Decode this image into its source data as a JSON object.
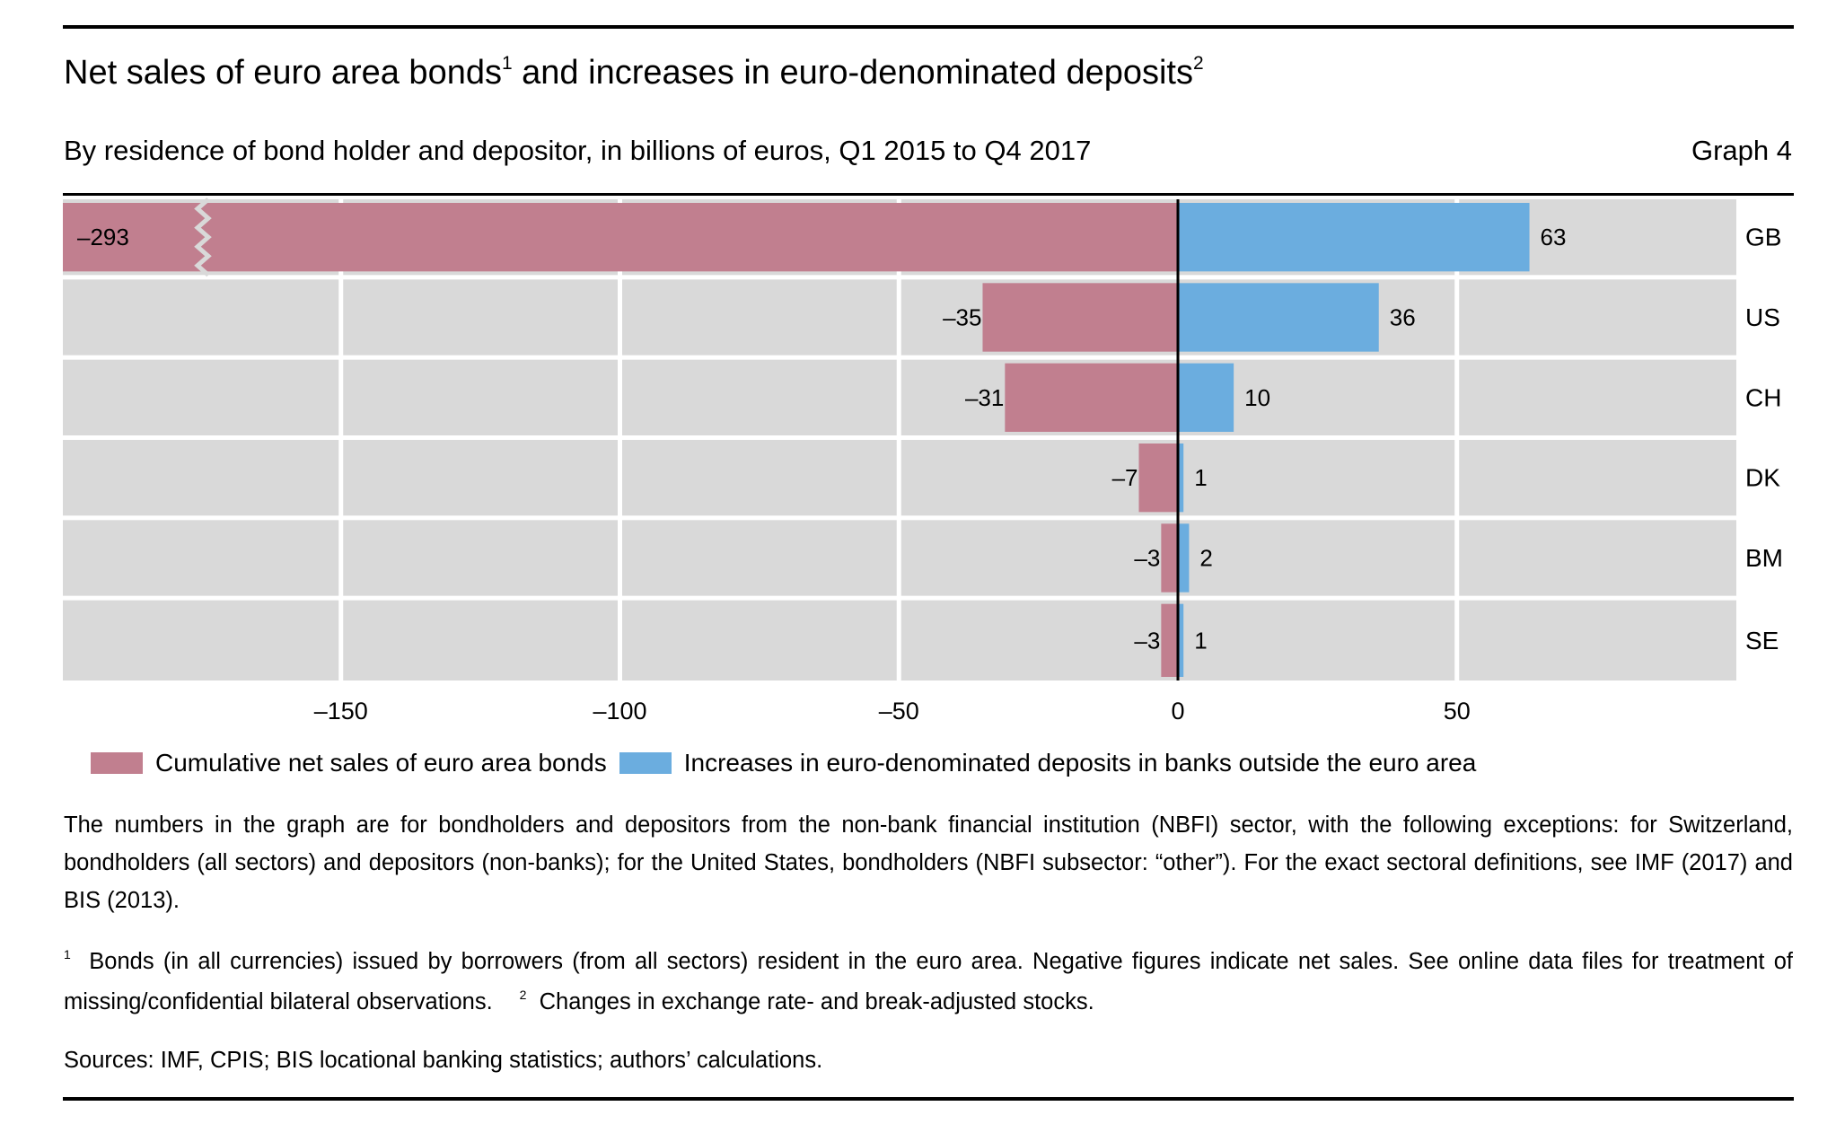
{
  "header": {
    "title": "Net sales of euro area bonds",
    "title_sup1": "1",
    "title_mid": " and increases in euro-denominated deposits",
    "title_sup2": "2",
    "subtitle": "By residence of bond holder and depositor, in billions of euros, Q1 2015 to Q4 2017",
    "graph_number": "Graph 4"
  },
  "legend": {
    "items": [
      {
        "label": "Cumulative net sales of euro area bonds",
        "color": "#C17F8F"
      },
      {
        "label": "Increases in euro-denominated deposits in banks outside the euro area",
        "color": "#6BADDF"
      }
    ]
  },
  "notes": {
    "paragraph": "The numbers in the graph are for bondholders and depositors from the non-bank financial institution (NBFI) sector, with the following exceptions: for Switzerland, bondholders (all sectors) and depositors (non-banks); for the United States, bondholders (NBFI subsector: “other”). For the exact sectoral definitions, see IMF (2017) and BIS (2013).",
    "footnote1_mark": "1",
    "footnote1": "Bonds (in all currencies) issued by borrowers (from all sectors) resident in the euro area. Negative figures indicate net sales. See online data files for treatment of missing/confidential bilateral observations.",
    "footnote2_mark": "2",
    "footnote2": "Changes in exchange rate- and break-adjusted stocks.",
    "sources": "Sources: IMF, CPIS; BIS locational banking statistics; authors’ calculations."
  },
  "chart_data": {
    "type": "bar",
    "orientation": "horizontal",
    "title": "Net sales of euro area bonds and increases in euro-denominated deposits",
    "subtitle": "By residence of bond holder and depositor, in billions of euros, Q1 2015 to Q4 2017",
    "xlabel": "",
    "ylabel": "",
    "categories": [
      "GB",
      "US",
      "CH",
      "DK",
      "BM",
      "SE"
    ],
    "series": [
      {
        "name": "Cumulative net sales of euro area bonds",
        "color": "#C17F8F",
        "values": [
          -293,
          -35,
          -31,
          -7,
          -3,
          -3
        ],
        "labels": [
          "–293",
          "–35",
          "–31",
          "–7",
          "–3",
          "–3"
        ]
      },
      {
        "name": "Increases in euro-denominated deposits in banks outside the euro area",
        "color": "#6BADDF",
        "values": [
          63,
          36,
          10,
          1,
          2,
          1
        ],
        "labels": [
          "63",
          "36",
          "10",
          "1",
          "2",
          "1"
        ]
      }
    ],
    "xlim": [
      -200,
      100
    ],
    "xticks": [
      -150,
      -100,
      -50,
      0,
      50
    ],
    "xtick_labels": [
      "–150",
      "–100",
      "–50",
      "0",
      "50"
    ],
    "axis_break": {
      "category": "GB",
      "series": "Cumulative net sales of euro area bonds"
    },
    "grid": true,
    "background_color": "#D9D9D9",
    "legend_position": "bottom"
  }
}
